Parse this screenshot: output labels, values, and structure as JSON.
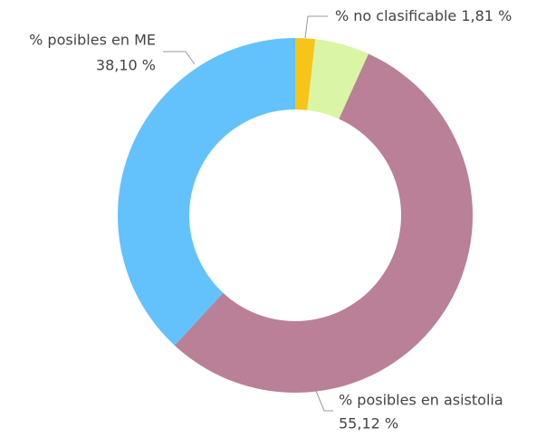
{
  "chart_data": {
    "type": "donut",
    "categories": [
      "% no clasificable",
      null,
      "% posibles en asistolia",
      "% posibles en ME"
    ],
    "values": [
      1.81,
      4.97,
      55.12,
      38.1
    ],
    "value_labels": [
      "1,81 %",
      null,
      "55,12 %",
      "38,10 %"
    ],
    "colors": [
      "#f5c518",
      "#d9f5a5",
      "#b98097",
      "#63c2fb"
    ]
  }
}
